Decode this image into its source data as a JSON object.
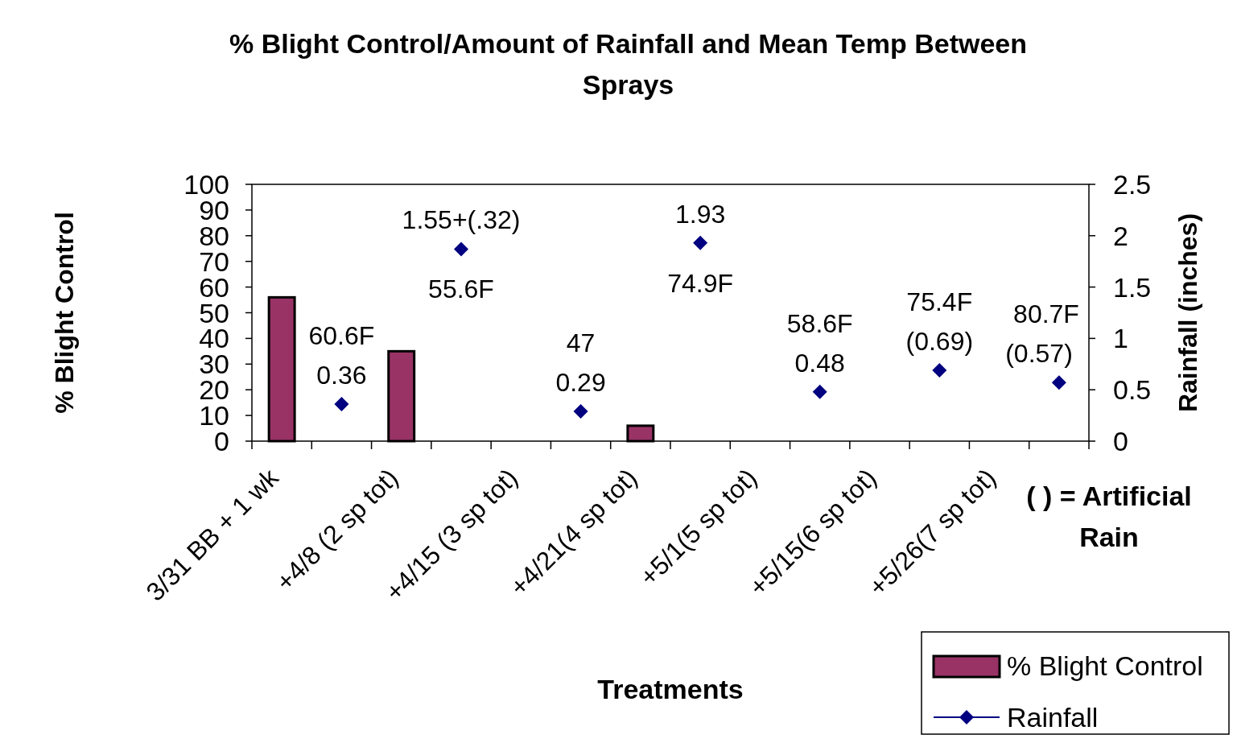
{
  "chart_data": {
    "type": "bar",
    "title": "% Blight Control/Amount of Rainfall and Mean Temp Between Sprays",
    "xlabel": "Treatments",
    "ylabel": "% Blight Control",
    "y2label": "Rainfall (inches)",
    "categories": [
      "3/31 BB + 1 wk",
      null,
      "+4/8 (2 sp tot)",
      null,
      "+4/15 (3 sp tot)",
      null,
      "+4/21(4 sp tot)",
      null,
      "+5/1(5 sp tot)",
      null,
      "+5/15(6 sp tot)",
      null,
      "+5/26(7 sp tot)",
      null
    ],
    "series": [
      {
        "name": "% Blight Control",
        "color": "#993366",
        "values": [
          56,
          null,
          35,
          null,
          null,
          null,
          6,
          null,
          null,
          null,
          null,
          null,
          null,
          null
        ]
      },
      {
        "name": "Rainfall",
        "type": "scatter",
        "axis": "y2",
        "color": "#000080",
        "marker": "diamond",
        "values": [
          null,
          0.36,
          null,
          1.87,
          null,
          0.29,
          null,
          1.93,
          null,
          0.48,
          null,
          0.69,
          null,
          0.57
        ],
        "value_labels": [
          null,
          "0.36",
          null,
          "1.55+(.32)",
          null,
          "0.29",
          null,
          "1.93",
          null,
          "0.48",
          null,
          "(0.69)",
          null,
          "(0.57)"
        ]
      }
    ],
    "ylim": [
      0,
      100
    ],
    "yticks": [
      0,
      10,
      20,
      30,
      40,
      50,
      60,
      70,
      80,
      90,
      100
    ],
    "y2lim": [
      0,
      2.5
    ],
    "y2ticks": [
      0,
      0.5,
      1,
      1.5,
      2,
      2.5
    ],
    "annotations": [
      "60.6F",
      "55.6F",
      "47",
      "74.9F",
      "58.6F",
      "75.4F",
      "80.7F",
      "( ) = Artificial Rain"
    ],
    "legend": "bottom right",
    "grid": false
  }
}
